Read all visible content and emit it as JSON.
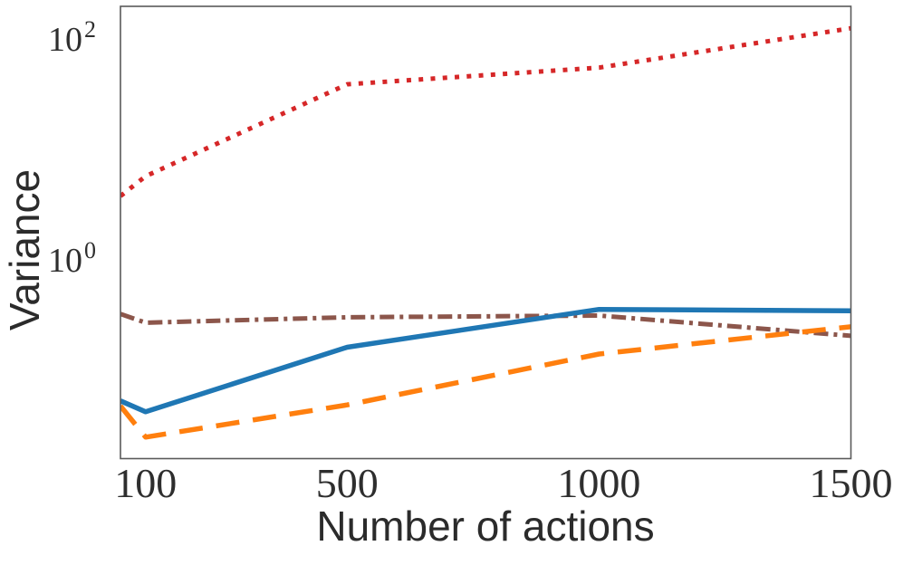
{
  "figure": {
    "background": "#ffffff",
    "spine_color": "#5a5a5a",
    "text_color": "#2e2e2e"
  },
  "chart_data": {
    "type": "line",
    "title": "",
    "xlabel": "Number of actions",
    "ylabel": "Variance",
    "x_scale": "linear",
    "y_scale": "log",
    "grid": false,
    "legend": "none",
    "xlim": [
      50,
      1500
    ],
    "ylim": [
      0.0147,
      183
    ],
    "x": [
      50,
      100,
      500,
      1000,
      1500
    ],
    "x_ticks": [
      {
        "value": 100,
        "label": "100"
      },
      {
        "value": 500,
        "label": "500"
      },
      {
        "value": 1000,
        "label": "1000"
      },
      {
        "value": 1500,
        "label": "1500"
      }
    ],
    "y_ticks": [
      {
        "value": 1,
        "base": "10",
        "exponent": "0"
      },
      {
        "value": 100,
        "base": "10",
        "exponent": "2"
      }
    ],
    "series": [
      {
        "name": "red-dotted",
        "style": "dotted",
        "color": "#d62728",
        "linewidth": 5,
        "values": [
          3.5,
          5.3,
          36,
          51,
          116
        ]
      },
      {
        "name": "brown-dashdot",
        "style": "dashdot",
        "color": "#8c564b",
        "linewidth": 5,
        "values": [
          0.3,
          0.25,
          0.28,
          0.29,
          0.19
        ]
      },
      {
        "name": "orange-dashed",
        "style": "dashed",
        "color": "#ff7f0e",
        "linewidth": 5.5,
        "values": [
          0.044,
          0.023,
          0.045,
          0.13,
          0.23
        ]
      },
      {
        "name": "blue-solid",
        "style": "solid",
        "color": "#1f77b4",
        "linewidth": 5.5,
        "values": [
          0.049,
          0.039,
          0.15,
          0.33,
          0.32
        ]
      }
    ]
  }
}
